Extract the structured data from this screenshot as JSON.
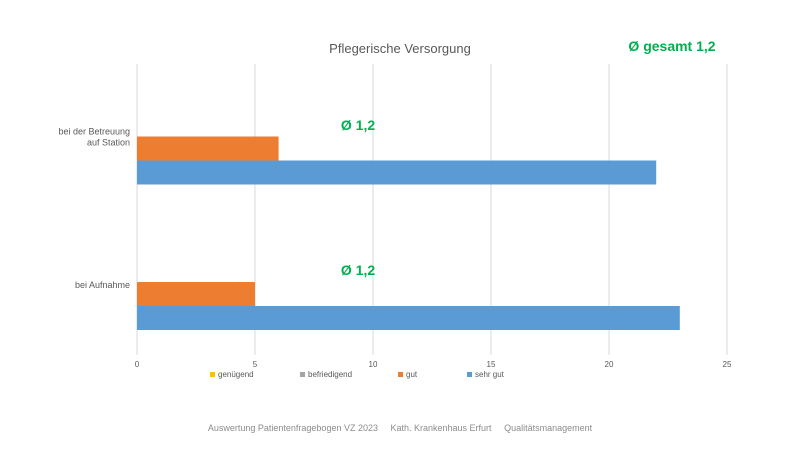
{
  "chart_data": {
    "type": "bar",
    "orientation": "horizontal",
    "title": "Pflegerische Versorgung",
    "categories": [
      "bei der Betreuung auf Station",
      "bei Aufnahme"
    ],
    "category_lines": [
      [
        "bei der Betreuung",
        "auf Station"
      ],
      [
        "bei Aufnahme"
      ]
    ],
    "series": [
      {
        "name": "genügend",
        "color": "#ffc000",
        "values": [
          0,
          0
        ]
      },
      {
        "name": "befriedigend",
        "color": "#a5a5a5",
        "values": [
          0,
          0
        ]
      },
      {
        "name": "gut",
        "color": "#ed7d31",
        "values": [
          6,
          5
        ]
      },
      {
        "name": "sehr gut",
        "color": "#5b9bd5",
        "values": [
          22,
          23
        ]
      }
    ],
    "xlim": [
      0,
      25
    ],
    "xticks": [
      0,
      5,
      10,
      15,
      20,
      25
    ],
    "grid": true,
    "legend_position": "bottom",
    "annotations": [
      "Ø 1,2",
      "Ø 1,2"
    ]
  },
  "overall_label": "Ø gesamt 1,2",
  "footer": [
    "Auswertung Patientenfragebogen VZ 2023",
    "Kath. Krankenhaus Erfurt",
    "Qualitätsmanagement"
  ]
}
